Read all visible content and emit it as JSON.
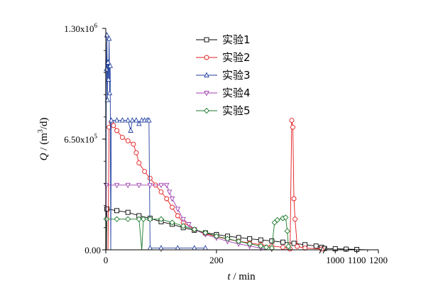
{
  "chart_data": {
    "type": "line",
    "y_axis": {
      "label_var": "Q",
      "label_unit_pre": " / (m",
      "label_unit_sup": "3",
      "label_unit_post": "/d)",
      "ticks": [
        {
          "value": 0,
          "text": "0.00"
        },
        {
          "value": 650000,
          "text": "6.50x10",
          "exp": "5"
        },
        {
          "value": 1300000,
          "text": "1.30x10",
          "exp": "6"
        }
      ],
      "ylim": [
        0,
        1300000
      ]
    },
    "x_axis": {
      "label_var": "t",
      "label_unit": " / min",
      "broken": true,
      "segment1": {
        "xlim": [
          0,
          390
        ],
        "ticks": [
          0,
          200
        ]
      },
      "segment2": {
        "xlim": [
          950,
          1200
        ],
        "ticks": [
          1000,
          1100,
          1200
        ]
      }
    },
    "legend_position": "top-center",
    "series": [
      {
        "name": "实验1",
        "color": "#000000",
        "marker": "square",
        "points": [
          [
            0,
            0
          ],
          [
            1,
            0
          ],
          [
            2,
            240000
          ],
          [
            20,
            230000
          ],
          [
            40,
            220000
          ],
          [
            60,
            200000
          ],
          [
            80,
            185000
          ],
          [
            100,
            165000
          ],
          [
            120,
            150000
          ],
          [
            140,
            130000
          ],
          [
            160,
            115000
          ],
          [
            180,
            100000
          ],
          [
            200,
            90000
          ],
          [
            220,
            80000
          ],
          [
            240,
            72000
          ],
          [
            260,
            65000
          ],
          [
            280,
            58000
          ],
          [
            300,
            52000
          ],
          [
            320,
            45000
          ],
          [
            340,
            38000
          ],
          [
            360,
            30000
          ],
          [
            380,
            22000
          ],
          [
            390,
            15000
          ],
          [
            950,
            8000
          ],
          [
            1000,
            6000
          ],
          [
            1050,
            4000
          ],
          [
            1100,
            2000
          ],
          [
            1150,
            0
          ]
        ]
      },
      {
        "name": "实验2",
        "color": "#e41a1c",
        "marker": "circle",
        "points": [
          [
            0,
            0
          ],
          [
            4,
            0
          ],
          [
            6,
            720000
          ],
          [
            10,
            750000
          ],
          [
            14,
            730000
          ],
          [
            20,
            700000
          ],
          [
            30,
            660000
          ],
          [
            40,
            640000
          ],
          [
            50,
            620000
          ],
          [
            55,
            570000
          ],
          [
            60,
            510000
          ],
          [
            70,
            460000
          ],
          [
            80,
            420000
          ],
          [
            90,
            380000
          ],
          [
            100,
            340000
          ],
          [
            110,
            300000
          ],
          [
            120,
            250000
          ],
          [
            130,
            200000
          ],
          [
            140,
            160000
          ],
          [
            160,
            120000
          ],
          [
            180,
            95000
          ],
          [
            200,
            78000
          ],
          [
            220,
            62000
          ],
          [
            240,
            50000
          ],
          [
            260,
            40000
          ],
          [
            280,
            30000
          ],
          [
            300,
            22000
          ],
          [
            320,
            15000
          ],
          [
            330,
            10000
          ],
          [
            333,
            5000
          ],
          [
            336,
            760000
          ],
          [
            338,
            720000
          ],
          [
            340,
            300000
          ],
          [
            342,
            180000
          ],
          [
            346,
            20000
          ],
          [
            360,
            10000
          ],
          [
            390,
            5000
          ]
        ]
      },
      {
        "name": "实验3",
        "color": "#1f3fa0",
        "marker": "triangle-up",
        "points": [
          [
            0,
            0
          ],
          [
            1,
            1060000
          ],
          [
            2,
            1260000
          ],
          [
            3,
            880000
          ],
          [
            4,
            1100000
          ],
          [
            5,
            1000000
          ],
          [
            6,
            1240000
          ],
          [
            7,
            920000
          ],
          [
            8,
            1080000
          ],
          [
            9,
            0
          ],
          [
            10,
            760000
          ],
          [
            20,
            760000
          ],
          [
            30,
            760000
          ],
          [
            40,
            760000
          ],
          [
            45,
            700000
          ],
          [
            48,
            760000
          ],
          [
            55,
            760000
          ],
          [
            60,
            740000
          ],
          [
            65,
            760000
          ],
          [
            70,
            760000
          ],
          [
            75,
            760000
          ],
          [
            78,
            760000
          ],
          [
            80,
            10000
          ],
          [
            100,
            10000
          ],
          [
            130,
            10000
          ],
          [
            160,
            10000
          ],
          [
            180,
            10000
          ]
        ]
      },
      {
        "name": "实验4",
        "color": "#a040b0",
        "marker": "triangle-down",
        "points": [
          [
            0,
            0
          ],
          [
            1,
            380000
          ],
          [
            20,
            380000
          ],
          [
            40,
            380000
          ],
          [
            60,
            380000
          ],
          [
            80,
            380000
          ],
          [
            100,
            380000
          ],
          [
            110,
            380000
          ],
          [
            115,
            340000
          ],
          [
            120,
            300000
          ],
          [
            130,
            240000
          ],
          [
            140,
            180000
          ],
          [
            150,
            150000
          ],
          [
            160,
            120000
          ],
          [
            180,
            90000
          ],
          [
            200,
            70000
          ],
          [
            220,
            50000
          ],
          [
            240,
            35000
          ],
          [
            260,
            22000
          ],
          [
            280,
            10000
          ],
          [
            290,
            0
          ]
        ]
      },
      {
        "name": "实验5",
        "color": "#1a7a2a",
        "marker": "diamond",
        "points": [
          [
            0,
            0
          ],
          [
            1,
            180000
          ],
          [
            20,
            180000
          ],
          [
            40,
            180000
          ],
          [
            60,
            180000
          ],
          [
            65,
            0
          ],
          [
            68,
            180000
          ],
          [
            80,
            180000
          ],
          [
            100,
            180000
          ],
          [
            120,
            160000
          ],
          [
            140,
            140000
          ],
          [
            160,
            120000
          ],
          [
            180,
            100000
          ],
          [
            200,
            80000
          ],
          [
            220,
            65000
          ],
          [
            240,
            50000
          ],
          [
            260,
            35000
          ],
          [
            280,
            22000
          ],
          [
            290,
            15000
          ],
          [
            300,
            10000
          ],
          [
            305,
            160000
          ],
          [
            310,
            175000
          ],
          [
            320,
            185000
          ],
          [
            325,
            190000
          ],
          [
            328,
            110000
          ],
          [
            330,
            20000
          ],
          [
            335,
            0
          ]
        ]
      }
    ]
  }
}
